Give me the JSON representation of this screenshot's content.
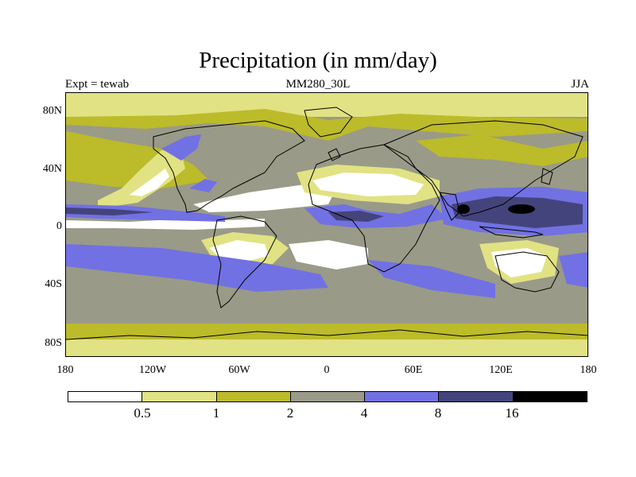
{
  "title": "Precipitation (in mm/day)",
  "subtitle_left": "Expt = tewab",
  "subtitle_center": "MM280_30L",
  "subtitle_right": "JJA",
  "lat_labels": [
    "80N",
    "40N",
    "0",
    "40S",
    "80S"
  ],
  "lon_labels": [
    "180",
    "120W",
    "60W",
    "0",
    "60E",
    "120E",
    "180"
  ],
  "colorbar": {
    "colors": [
      "#ffffff",
      "#e1e283",
      "#bcbb2a",
      "#9a9a88",
      "#7171e3",
      "#44447c",
      "#000000"
    ],
    "labels": [
      "0.5",
      "1",
      "2",
      "4",
      "8",
      "16"
    ]
  },
  "map": {
    "projection": "cylindrical-equidistant",
    "lon_range": [
      -180,
      180
    ],
    "lat_range": [
      -90,
      90
    ],
    "background_level_color": "#9a9a88",
    "coastline_color": "#000000"
  }
}
